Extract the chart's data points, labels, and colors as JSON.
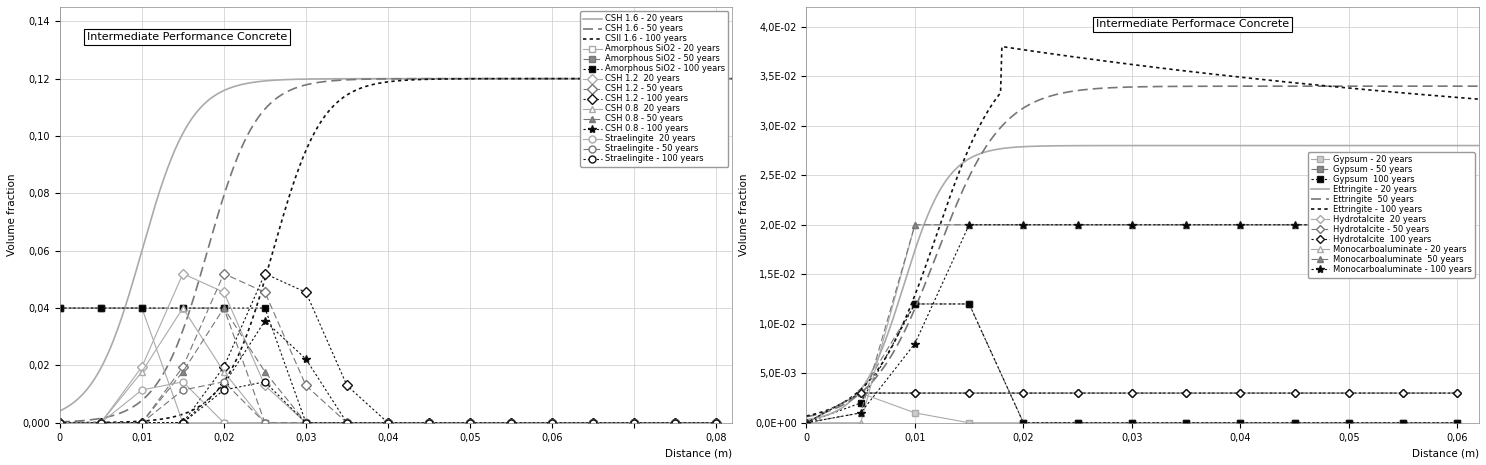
{
  "left_title": "Intermediate Performance Concrete",
  "right_title": "Intermediate Performace Concrete",
  "ylabel": "Volume fraction",
  "xlabel": "Distance (m)",
  "left_ylim": [
    0,
    0.145
  ],
  "left_ytick_labels": [
    "0,000",
    "0,02",
    "0,04",
    "0,06",
    "0,08",
    "0,10",
    "0,12",
    "0,14"
  ],
  "left_yticks": [
    0.0,
    0.02,
    0.04,
    0.06,
    0.08,
    0.1,
    0.12,
    0.14
  ],
  "right_ylim": [
    0,
    0.042
  ],
  "right_ytick_labels": [
    "0,0E+00",
    "5,0E-03",
    "1,0E-02",
    "1,5E-02",
    "2,0E-02",
    "2,5E-02",
    "3,0E-02",
    "3,5E-02",
    "4,0E-02"
  ],
  "right_yticks": [
    0.0,
    0.005,
    0.01,
    0.015,
    0.02,
    0.025,
    0.03,
    0.035,
    0.04
  ],
  "left_xlim": [
    0,
    0.082
  ],
  "left_xticks": [
    0,
    0.01,
    0.02,
    0.03,
    0.04,
    0.05,
    0.06,
    0.07,
    0.08
  ],
  "left_xtick_labels": [
    "0",
    "0,01",
    "0,02",
    "0,03",
    "0,04",
    "0,05",
    "0,06",
    "",
    "0,08"
  ],
  "right_xlim": [
    0,
    0.062
  ],
  "right_xticks": [
    0,
    0.01,
    0.02,
    0.03,
    0.04,
    0.05,
    0.06
  ],
  "right_xtick_labels": [
    "0",
    "0,01",
    "0,02",
    "0,03",
    "0,04",
    "0,05",
    "0,06"
  ],
  "light": "#aaaaaa",
  "mid": "#777777",
  "dark": "#111111"
}
